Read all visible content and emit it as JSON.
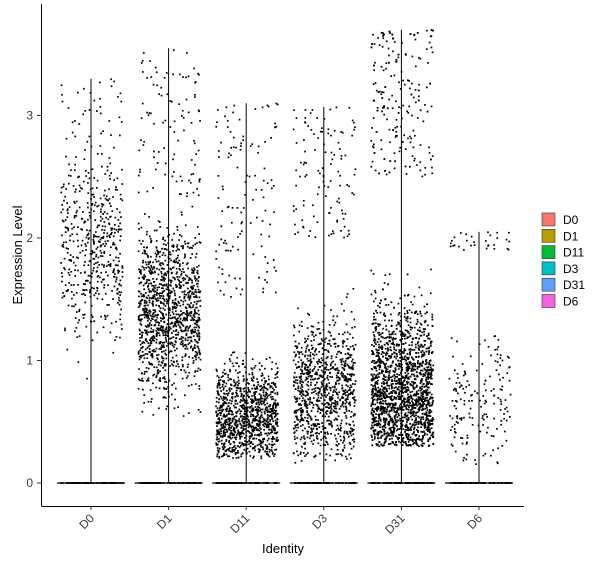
{
  "chart_data": {
    "type": "scatter",
    "subtype": "violin-jitter",
    "xlabel": "Identity",
    "ylabel": "Expression Level",
    "ylim": [
      -0.22,
      3.8
    ],
    "y_ticks": [
      0,
      1,
      2,
      3
    ],
    "categories": [
      "D0",
      "D1",
      "D11",
      "D3",
      "D31",
      "D6"
    ],
    "series": [
      {
        "name": "D0",
        "color": "#F8766D",
        "max": 3.3,
        "nonzero_points": 520,
        "bulk_range": [
          0.3,
          2.6
        ],
        "median_nonzero": 1.9
      },
      {
        "name": "D1",
        "color": "#B79F00",
        "max": 3.55,
        "nonzero_points": 1300,
        "bulk_range": [
          0.3,
          2.3
        ],
        "median_nonzero": 1.4
      },
      {
        "name": "D11",
        "color": "#00BA38",
        "max": 3.1,
        "nonzero_points": 1200,
        "bulk_range": [
          0.2,
          1.5
        ],
        "median_nonzero": 0.55
      },
      {
        "name": "D3",
        "color": "#00BFC4",
        "max": 3.07,
        "nonzero_points": 1050,
        "bulk_range": [
          0.15,
          2.0
        ],
        "median_nonzero": 0.75
      },
      {
        "name": "D31",
        "color": "#619CFF",
        "max": 3.7,
        "nonzero_points": 2300,
        "bulk_range": [
          0.3,
          2.5
        ],
        "median_nonzero": 0.75
      },
      {
        "name": "D6",
        "color": "#F564E3",
        "max": 2.05,
        "nonzero_points": 200,
        "bulk_range": [
          0.15,
          1.9
        ],
        "median_nonzero": 0.7
      }
    ],
    "legend": {
      "position": "right"
    },
    "grid": false
  }
}
